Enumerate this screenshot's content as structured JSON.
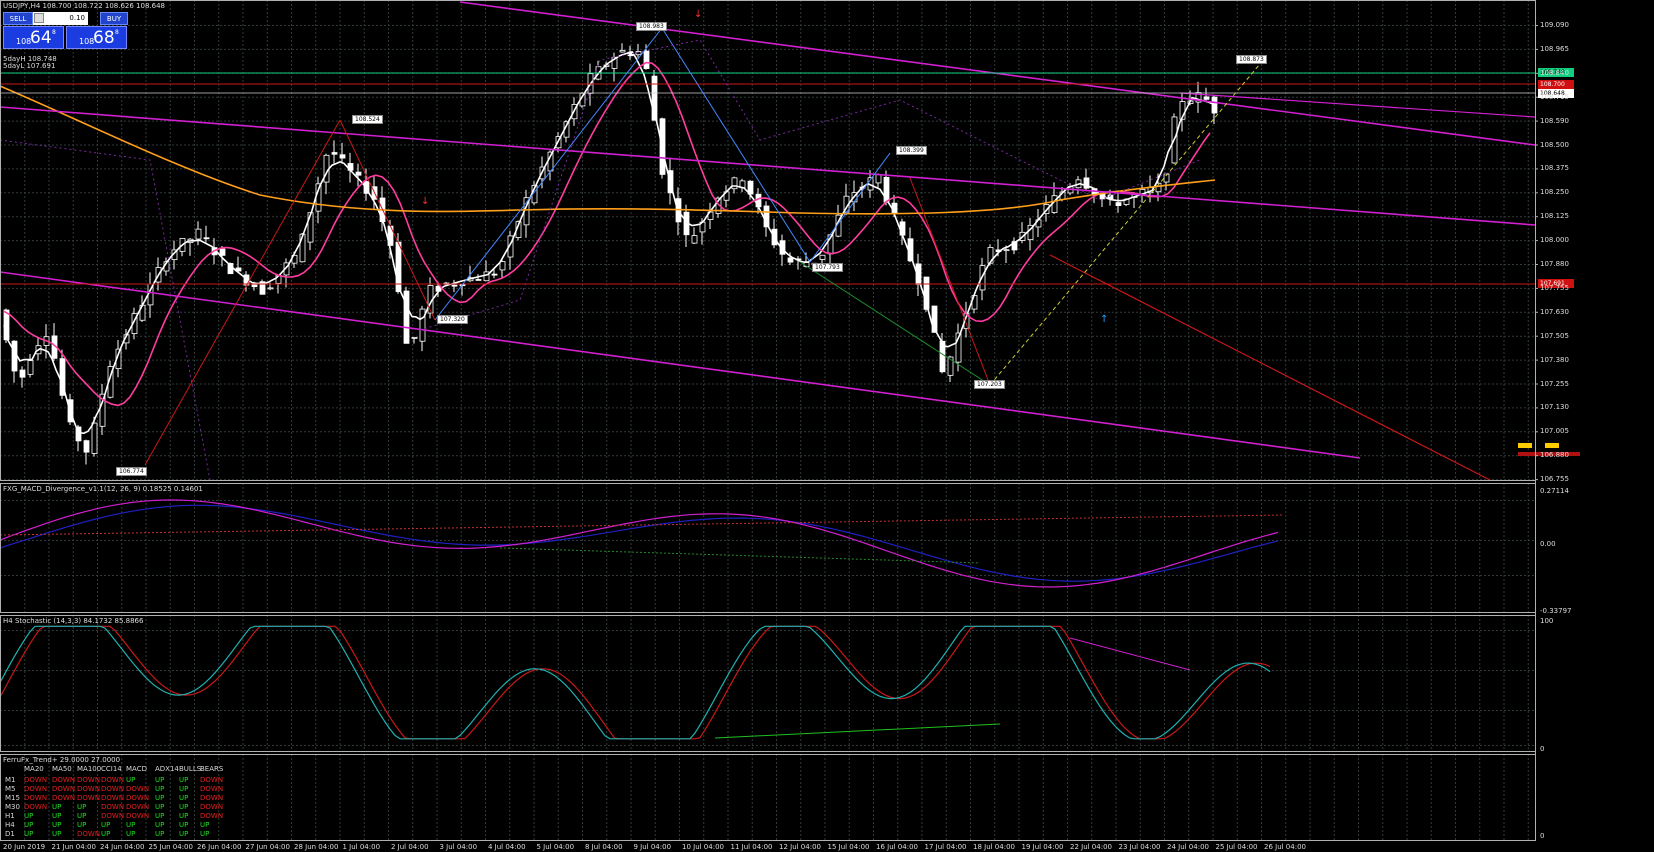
{
  "header": {
    "title": "USDJPY,H4  108.700 108.722 108.626 108.648",
    "sdayh": "5dayH 108.748",
    "sdayl": "5dayL 107.691"
  },
  "trade": {
    "sell_label": "SELL",
    "buy_label": "BUY",
    "lot": "0.10",
    "sell_price": {
      "prefix": "108",
      "big": "64",
      "sup": "8"
    },
    "buy_price": {
      "prefix": "108",
      "big": "68",
      "sup": "8"
    }
  },
  "price_axis": [
    "109.090",
    "108.965",
    "108.840",
    "108.715",
    "108.590",
    "108.500",
    "108.375",
    "108.250",
    "108.125",
    "108.000",
    "107.880",
    "107.755",
    "107.630",
    "107.505",
    "107.380",
    "107.255",
    "107.130",
    "107.005",
    "106.880",
    "106.755"
  ],
  "price_labels": {
    "green": "108.748",
    "red": "108.700",
    "white": "108.648",
    "red_low": "107.691"
  },
  "price_tags": [
    {
      "text": "108.524"
    },
    {
      "text": "108.983"
    },
    {
      "text": "108.399"
    },
    {
      "text": "108.873"
    },
    {
      "text": "107.793"
    },
    {
      "text": "107.320"
    },
    {
      "text": "107.203"
    },
    {
      "text": "106.774"
    }
  ],
  "macd": {
    "title": "FXG_MACD_Divergence_v1.1(12, 26, 9) 0.18525 0.14601",
    "axis": [
      "0.27114",
      "0.00",
      "-0.33797"
    ]
  },
  "stoch": {
    "title": "H4 Stochastic (14,3,3) 84.1732 85.8866",
    "axis": [
      "100",
      "0"
    ]
  },
  "trend": {
    "title": "FerruFx_Trend+ 29.0000 27.0000",
    "axis": [
      "0"
    ],
    "headers": [
      "MA20",
      "MA50",
      "MA100",
      "CCI14",
      "MACD",
      "ADX14",
      "BULLS",
      "BEARS"
    ],
    "rows": [
      {
        "tf": "M1",
        "vals": [
          "DOWN",
          "DOWN",
          "DOWN",
          "DOWN",
          "UP",
          "UP",
          "UP",
          "DOWN"
        ]
      },
      {
        "tf": "M5",
        "vals": [
          "DOWN",
          "DOWN",
          "DOWN",
          "DOWN",
          "DOWN",
          "UP",
          "UP",
          "DOWN"
        ]
      },
      {
        "tf": "M15",
        "vals": [
          "DOWN",
          "DOWN",
          "DOWN",
          "DOWN",
          "DOWN",
          "UP",
          "UP",
          "DOWN"
        ]
      },
      {
        "tf": "M30",
        "vals": [
          "DOWN",
          "UP",
          "UP",
          "DOWN",
          "DOWN",
          "UP",
          "UP",
          "DOWN"
        ]
      },
      {
        "tf": "H1",
        "vals": [
          "UP",
          "UP",
          "UP",
          "DOWN",
          "DOWN",
          "UP",
          "UP",
          "DOWN"
        ]
      },
      {
        "tf": "H4",
        "vals": [
          "UP",
          "UP",
          "UP",
          "UP",
          "UP",
          "UP",
          "UP",
          "UP"
        ]
      },
      {
        "tf": "D1",
        "vals": [
          "UP",
          "UP",
          "DOWN",
          "UP",
          "UP",
          "UP",
          "UP",
          "UP"
        ]
      }
    ]
  },
  "time_axis": [
    "20 Jun 2019",
    "21 Jun 04:00",
    "24 Jun 04:00",
    "25 Jun 04:00",
    "26 Jun 04:00",
    "27 Jun 04:00",
    "28 Jun 04:00",
    "1 Jul 04:00",
    "2 Jul 04:00",
    "3 Jul 04:00",
    "4 Jul 04:00",
    "5 Jul 04:00",
    "8 Jul 04:00",
    "9 Jul 04:00",
    "10 Jul 04:00",
    "11 Jul 04:00",
    "12 Jul 04:00",
    "15 Jul 04:00",
    "16 Jul 04:00",
    "17 Jul 04:00",
    "18 Jul 04:00",
    "19 Jul 04:00",
    "22 Jul 04:00",
    "23 Jul 04:00",
    "24 Jul 04:00",
    "25 Jul 04:00",
    "26 Jul 04:00"
  ],
  "colors": {
    "bull": "#ffffff",
    "bear": "#ffffff",
    "grid": "#303a3a",
    "magenta": "#d020d0",
    "orange": "#ff9f1a",
    "pink": "#ff3ca0",
    "red": "#c81818",
    "green": "#10d080"
  }
}
